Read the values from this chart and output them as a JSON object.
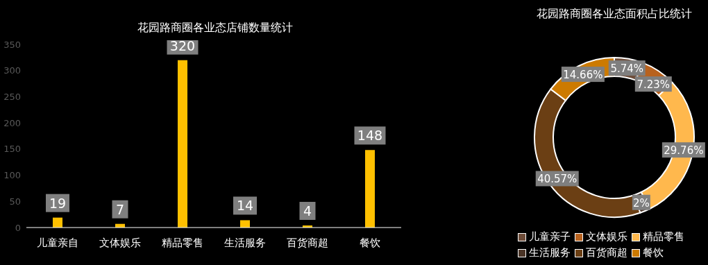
{
  "chart_data": [
    {
      "type": "bar",
      "title": "花园路商圈各业态店铺数量统计",
      "categories": [
        "儿童亲自",
        "文体娱乐",
        "精品零售",
        "生活服务",
        "百货商超",
        "餐饮"
      ],
      "values": [
        19,
        7,
        320,
        14,
        4,
        148
      ],
      "color": "#ffc000",
      "ylim": [
        0,
        350
      ],
      "yticks": [
        0,
        50,
        100,
        150,
        200,
        250,
        300,
        350
      ],
      "data_labels": true
    },
    {
      "type": "donut",
      "title": "花园路商圈各业态面积占比统计",
      "categories": [
        "儿童亲子",
        "文体娱乐",
        "精品零售",
        "生活服务",
        "百货商超",
        "餐饮"
      ],
      "values": [
        5.74,
        7.23,
        29.76,
        2,
        40.57,
        14.66
      ],
      "colors": [
        "#6e4c38",
        "#b8621e",
        "#ffb84d",
        "#4a3426",
        "#6b3f14",
        "#cc7a00"
      ],
      "value_labels": [
        "5.74%",
        "7.23%",
        "29.76%",
        "2%",
        "40.57%",
        "14.66%"
      ],
      "legend": "bottom"
    }
  ]
}
